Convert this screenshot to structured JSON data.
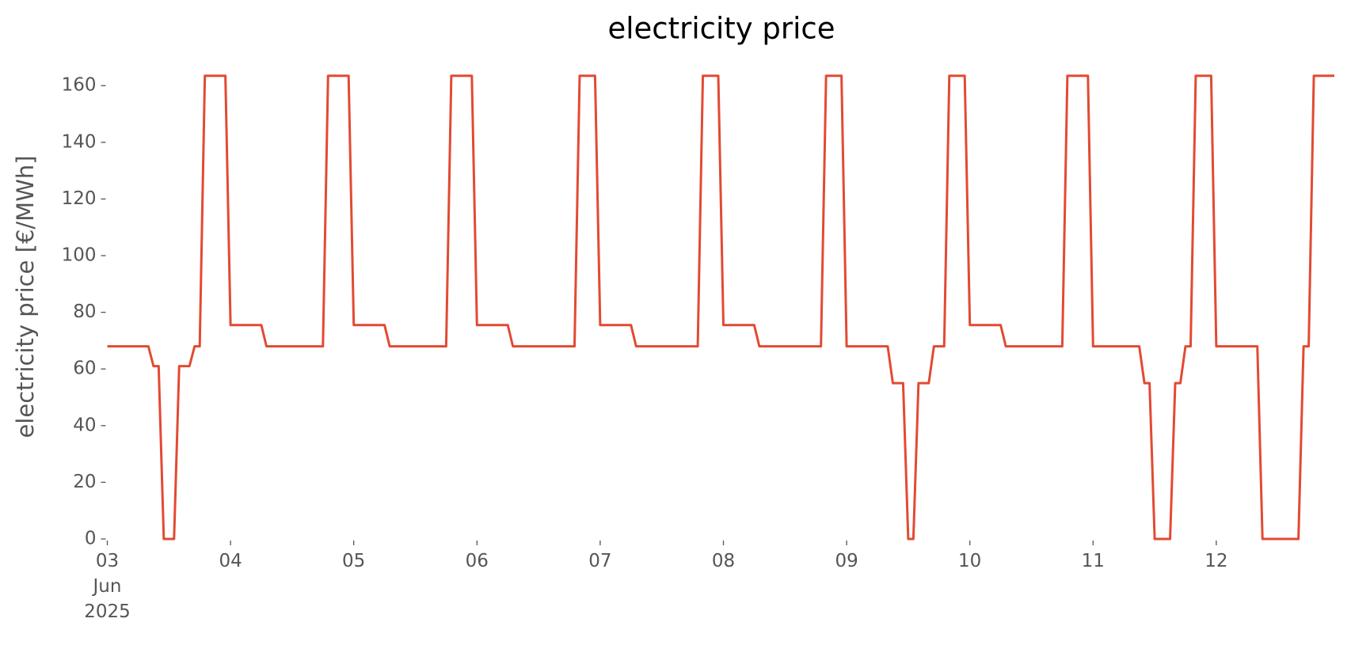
{
  "chart_data": {
    "type": "line",
    "title": "electricity price",
    "y_label": "electricity price [€/MWh]",
    "x": [
      0,
      1,
      2,
      3,
      4,
      5,
      6,
      7,
      8,
      9,
      10,
      11,
      12,
      13,
      14,
      15,
      16,
      17,
      18,
      19,
      20,
      21,
      22,
      23,
      24,
      25,
      26,
      27,
      28,
      29,
      30,
      31,
      32,
      33,
      34,
      35,
      36,
      37,
      38,
      39,
      40,
      41,
      42,
      43,
      44,
      45,
      46,
      47,
      48,
      49,
      50,
      51,
      52,
      53,
      54,
      55,
      56,
      57,
      58,
      59,
      60,
      61,
      62,
      63,
      64,
      65,
      66,
      67,
      68,
      69,
      70,
      71,
      72,
      73,
      74,
      75,
      76,
      77,
      78,
      79,
      80,
      81,
      82,
      83,
      84,
      85,
      86,
      87,
      88,
      89,
      90,
      91,
      92,
      93,
      94,
      95,
      96,
      97,
      98,
      99,
      100,
      101,
      102,
      103,
      104,
      105,
      106,
      107,
      108,
      109,
      110,
      111,
      112,
      113,
      114,
      115,
      116,
      117,
      118,
      119,
      120,
      121,
      122,
      123,
      124,
      125,
      126,
      127,
      128,
      129,
      130,
      131,
      132,
      133,
      134,
      135,
      136,
      137,
      138,
      139,
      140,
      141,
      142,
      143,
      144,
      145,
      146,
      147,
      148,
      149,
      150,
      151,
      152,
      153,
      154,
      155,
      156,
      157,
      158,
      159,
      160,
      161,
      162,
      163,
      164,
      165,
      166,
      167,
      168,
      169,
      170,
      171,
      172,
      173,
      174,
      175,
      176,
      177,
      178,
      179,
      180,
      181,
      182,
      183,
      184,
      185,
      186,
      187,
      188,
      189,
      190,
      191,
      192,
      193,
      194,
      195,
      196,
      197,
      198,
      199,
      200,
      201,
      202,
      203,
      204,
      205,
      206,
      207,
      208,
      209,
      210,
      211,
      212,
      213,
      214,
      215,
      216,
      217,
      218,
      219,
      220,
      221,
      222,
      223,
      224,
      225,
      226,
      227,
      228,
      229,
      230,
      231,
      232,
      233,
      234,
      235,
      236,
      237,
      238,
      239
    ],
    "series": [
      {
        "name": "electricity price",
        "color": "#E24A33",
        "values": [
          68,
          68,
          68,
          68,
          68,
          68,
          68,
          68,
          68,
          61,
          61,
          0,
          0,
          0,
          61,
          61,
          61,
          68,
          68,
          163.5,
          163.5,
          163.5,
          163.5,
          163.5,
          75.5,
          75.5,
          75.5,
          75.5,
          75.5,
          75.5,
          75.5,
          68,
          68,
          68,
          68,
          68,
          68,
          68,
          68,
          68,
          68,
          68,
          68,
          163.5,
          163.5,
          163.5,
          163.5,
          163.5,
          75.5,
          75.5,
          75.5,
          75.5,
          75.5,
          75.5,
          75.5,
          68,
          68,
          68,
          68,
          68,
          68,
          68,
          68,
          68,
          68,
          68,
          68,
          163.5,
          163.5,
          163.5,
          163.5,
          163.5,
          75.5,
          75.5,
          75.5,
          75.5,
          75.5,
          75.5,
          75.5,
          68,
          68,
          68,
          68,
          68,
          68,
          68,
          68,
          68,
          68,
          68,
          68,
          68,
          163.5,
          163.5,
          163.5,
          163.5,
          75.5,
          75.5,
          75.5,
          75.5,
          75.5,
          75.5,
          75.5,
          68,
          68,
          68,
          68,
          68,
          68,
          68,
          68,
          68,
          68,
          68,
          68,
          68,
          163.5,
          163.5,
          163.5,
          163.5,
          75.5,
          75.5,
          75.5,
          75.5,
          75.5,
          75.5,
          75.5,
          68,
          68,
          68,
          68,
          68,
          68,
          68,
          68,
          68,
          68,
          68,
          68,
          68,
          163.5,
          163.5,
          163.5,
          163.5,
          68,
          68,
          68,
          68,
          68,
          68,
          68,
          68,
          68,
          55,
          55,
          55,
          0,
          0,
          55,
          55,
          55,
          68,
          68,
          68,
          163.5,
          163.5,
          163.5,
          163.5,
          75.5,
          75.5,
          75.5,
          75.5,
          75.5,
          75.5,
          75.5,
          68,
          68,
          68,
          68,
          68,
          68,
          68,
          68,
          68,
          68,
          68,
          68,
          163.5,
          163.5,
          163.5,
          163.5,
          163.5,
          68,
          68,
          68,
          68,
          68,
          68,
          68,
          68,
          68,
          68,
          55,
          55,
          0,
          0,
          0,
          0,
          55,
          55,
          68,
          68,
          163.5,
          163.5,
          163.5,
          163.5,
          68,
          68,
          68,
          68,
          68,
          68,
          68,
          68,
          68,
          0,
          0,
          0,
          0,
          0,
          0,
          0,
          0,
          68,
          68,
          163.5,
          163.5,
          163.5,
          163.5,
          163.5
        ]
      }
    ],
    "xlim": [
      0,
      239
    ],
    "xticks": [
      {
        "value": 0,
        "label": "03\nJun\n2025"
      },
      {
        "value": 24,
        "label": "04"
      },
      {
        "value": 48,
        "label": "05"
      },
      {
        "value": 72,
        "label": "06"
      },
      {
        "value": 96,
        "label": "07"
      },
      {
        "value": 120,
        "label": "08"
      },
      {
        "value": 144,
        "label": "09"
      },
      {
        "value": 168,
        "label": "10"
      },
      {
        "value": 192,
        "label": "11"
      },
      {
        "value": 216,
        "label": "12"
      }
    ],
    "ylim": [
      0,
      168
    ],
    "yticks": [
      0,
      20,
      40,
      60,
      80,
      100,
      120,
      140,
      160
    ],
    "grid": false
  }
}
